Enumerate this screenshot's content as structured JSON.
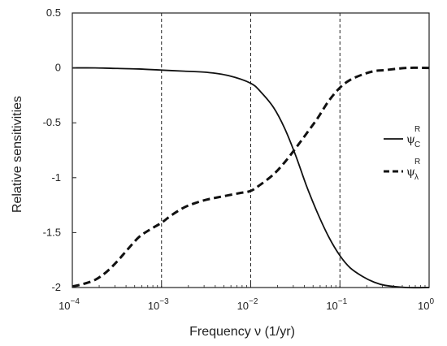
{
  "chart_data": {
    "type": "line",
    "xlabel": "Frequency ν (1/yr)",
    "ylabel": "Relative sensitivities",
    "xscale": "log",
    "xlim": [
      0.0001,
      1
    ],
    "ylim": [
      -2,
      0.5
    ],
    "x_ticks": [
      {
        "value": 0.0001,
        "base": "10",
        "exp": "−4"
      },
      {
        "value": 0.001,
        "base": "10",
        "exp": "−3"
      },
      {
        "value": 0.01,
        "base": "10",
        "exp": "−2"
      },
      {
        "value": 0.1,
        "base": "10",
        "exp": "−1"
      },
      {
        "value": 1,
        "base": "10",
        "exp": "0"
      }
    ],
    "y_ticks": [
      {
        "value": 0.5,
        "label": "0.5"
      },
      {
        "value": 0,
        "label": "0"
      },
      {
        "value": -0.5,
        "label": "-0.5"
      },
      {
        "value": -1,
        "label": "-1"
      },
      {
        "value": -1.5,
        "label": "-1.5"
      },
      {
        "value": -2,
        "label": "-2"
      }
    ],
    "vertical_reference_lines": [
      0.001,
      0.01,
      0.1
    ],
    "grid": false,
    "legend_position": "right",
    "series": [
      {
        "name": "ψ_C^R",
        "legend_symbol": "ψ",
        "legend_sup": "R",
        "legend_sub": "C",
        "style": "solid",
        "x": [
          0.0001,
          0.00018,
          0.00032,
          0.00056,
          0.001,
          0.0018,
          0.0032,
          0.0056,
          0.01,
          0.013,
          0.018,
          0.024,
          0.032,
          0.042,
          0.056,
          0.075,
          0.1,
          0.13,
          0.18,
          0.24,
          0.32,
          0.56,
          1
        ],
        "y": [
          0,
          0,
          -0.005,
          -0.01,
          -0.02,
          -0.03,
          -0.04,
          -0.07,
          -0.14,
          -0.22,
          -0.36,
          -0.55,
          -0.8,
          -1.07,
          -1.32,
          -1.54,
          -1.71,
          -1.82,
          -1.9,
          -1.95,
          -1.98,
          -2.0,
          -2.0
        ]
      },
      {
        "name": "ψ_λ^R",
        "legend_symbol": "ψ",
        "legend_sup": "R",
        "legend_sub": "λ",
        "style": "dashed",
        "x": [
          0.0001,
          0.00013,
          0.00018,
          0.00024,
          0.00032,
          0.00042,
          0.00056,
          0.00075,
          0.001,
          0.0013,
          0.0018,
          0.0024,
          0.0032,
          0.0042,
          0.0056,
          0.0075,
          0.01,
          0.013,
          0.018,
          0.024,
          0.032,
          0.042,
          0.056,
          0.075,
          0.1,
          0.13,
          0.18,
          0.24,
          0.32,
          0.56,
          1
        ],
        "y": [
          -1.99,
          -1.97,
          -1.93,
          -1.86,
          -1.76,
          -1.65,
          -1.54,
          -1.47,
          -1.41,
          -1.34,
          -1.27,
          -1.23,
          -1.2,
          -1.18,
          -1.16,
          -1.14,
          -1.12,
          -1.06,
          -0.97,
          -0.86,
          -0.73,
          -0.6,
          -0.46,
          -0.3,
          -0.18,
          -0.11,
          -0.06,
          -0.03,
          -0.02,
          0,
          0
        ]
      }
    ]
  }
}
